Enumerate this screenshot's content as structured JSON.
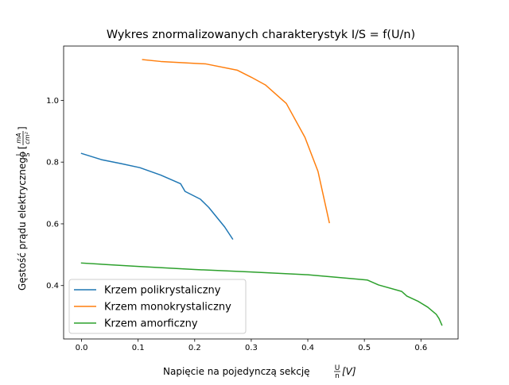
{
  "chart_data": {
    "type": "line",
    "title": "Wykres znormalizowanych charakterystyk I/S = f(U/n)",
    "xlabel": {
      "prefix": "Napięcie na pojedynczą sekcję ",
      "frac_num": "U",
      "frac_den": "n",
      "suffix": "[V]"
    },
    "ylabel": {
      "prefix": "Gęstość prądu elektrycznego ",
      "frac_num": "I",
      "frac_den": "S",
      "unit_num": "mA",
      "unit_den": "cm²"
    },
    "xlim": [
      -0.0317,
      0.6657
    ],
    "ylim": [
      0.227,
      1.176
    ],
    "xticks": [
      {
        "value": 0.0,
        "label": "0.0"
      },
      {
        "value": 0.1,
        "label": "0.1"
      },
      {
        "value": 0.2,
        "label": "0.2"
      },
      {
        "value": 0.3,
        "label": "0.3"
      },
      {
        "value": 0.4,
        "label": "0.4"
      },
      {
        "value": 0.5,
        "label": "0.5"
      },
      {
        "value": 0.6,
        "label": "0.6"
      }
    ],
    "yticks": [
      {
        "value": 0.4,
        "label": "0.4"
      },
      {
        "value": 0.6,
        "label": "0.6"
      },
      {
        "value": 0.8,
        "label": "0.8"
      },
      {
        "value": 1.0,
        "label": "1.0"
      }
    ],
    "grid": false,
    "legend_position": "lower-left",
    "series": [
      {
        "name": "Krzem polikrystaliczny",
        "color": "#1f77b4",
        "points": [
          [
            0.0,
            0.828
          ],
          [
            0.035,
            0.808
          ],
          [
            0.07,
            0.795
          ],
          [
            0.103,
            0.782
          ],
          [
            0.14,
            0.758
          ],
          [
            0.175,
            0.73
          ],
          [
            0.183,
            0.705
          ],
          [
            0.21,
            0.68
          ],
          [
            0.225,
            0.653
          ],
          [
            0.253,
            0.59
          ],
          [
            0.267,
            0.551
          ]
        ]
      },
      {
        "name": "Krzem monokrystaliczny",
        "color": "#ff7f0e",
        "points": [
          [
            0.108,
            1.132
          ],
          [
            0.14,
            1.126
          ],
          [
            0.22,
            1.118
          ],
          [
            0.275,
            1.098
          ],
          [
            0.3,
            1.075
          ],
          [
            0.325,
            1.05
          ],
          [
            0.362,
            0.99
          ],
          [
            0.395,
            0.88
          ],
          [
            0.418,
            0.77
          ],
          [
            0.438,
            0.604
          ]
        ]
      },
      {
        "name": "Krzem amorficzny",
        "color": "#2ca02c",
        "points": [
          [
            0.0,
            0.473
          ],
          [
            0.1,
            0.462
          ],
          [
            0.2,
            0.452
          ],
          [
            0.3,
            0.444
          ],
          [
            0.4,
            0.435
          ],
          [
            0.45,
            0.427
          ],
          [
            0.505,
            0.418
          ],
          [
            0.525,
            0.402
          ],
          [
            0.566,
            0.381
          ],
          [
            0.575,
            0.366
          ],
          [
            0.595,
            0.349
          ],
          [
            0.612,
            0.33
          ],
          [
            0.627,
            0.307
          ],
          [
            0.632,
            0.293
          ],
          [
            0.637,
            0.272
          ]
        ]
      }
    ]
  }
}
